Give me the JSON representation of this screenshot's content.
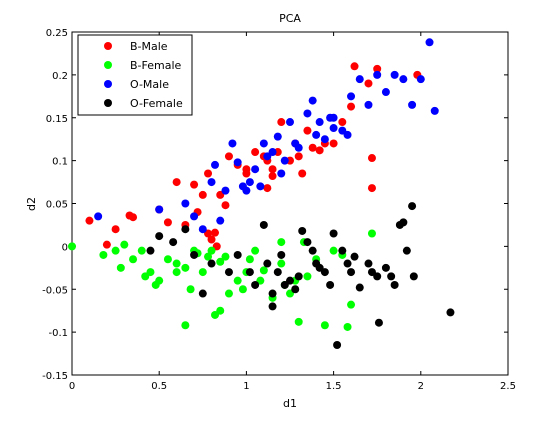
{
  "chart_data": {
    "type": "scatter",
    "title": "PCA",
    "xlabel": "d1",
    "ylabel": "d2",
    "xlim": [
      0,
      2.5
    ],
    "ylim": [
      -0.15,
      0.25
    ],
    "xticks": [
      0,
      0.5,
      1,
      1.5,
      2,
      2.5
    ],
    "xtick_labels": [
      "0",
      "0.5",
      "1",
      "1.5",
      "2",
      "2.5"
    ],
    "yticks": [
      -0.15,
      -0.1,
      -0.05,
      0,
      0.05,
      0.1,
      0.15,
      0.2,
      0.25
    ],
    "ytick_labels": [
      "-0.15",
      "-0.1",
      "-0.05",
      "0",
      "0.05",
      "0.1",
      "0.15",
      "0.2",
      "0.25"
    ],
    "grid": false,
    "legend_position": "top-left",
    "series": [
      {
        "name": "B-Male",
        "color": "#ff0000",
        "points": [
          [
            0.1,
            0.03
          ],
          [
            0.2,
            0.002
          ],
          [
            0.25,
            0.02
          ],
          [
            0.33,
            0.036
          ],
          [
            0.35,
            0.034
          ],
          [
            0.5,
            0.043
          ],
          [
            0.55,
            0.028
          ],
          [
            0.6,
            0.075
          ],
          [
            0.65,
            0.025
          ],
          [
            0.7,
            0.072
          ],
          [
            0.72,
            0.04
          ],
          [
            0.75,
            0.06
          ],
          [
            0.78,
            0.085
          ],
          [
            0.78,
            0.015
          ],
          [
            0.8,
            0.008
          ],
          [
            0.82,
            0.016
          ],
          [
            0.85,
            0.06
          ],
          [
            0.88,
            0.048
          ],
          [
            0.9,
            0.105
          ],
          [
            0.95,
            0.095
          ],
          [
            1.0,
            0.09
          ],
          [
            1.0,
            0.085
          ],
          [
            1.05,
            0.11
          ],
          [
            1.1,
            0.105
          ],
          [
            1.12,
            0.1
          ],
          [
            1.15,
            0.09
          ],
          [
            1.15,
            0.082
          ],
          [
            1.12,
            0.068
          ],
          [
            1.18,
            0.11
          ],
          [
            1.2,
            0.145
          ],
          [
            1.25,
            0.1
          ],
          [
            1.28,
            0.12
          ],
          [
            1.3,
            0.105
          ],
          [
            1.32,
            0.085
          ],
          [
            1.35,
            0.135
          ],
          [
            1.38,
            0.115
          ],
          [
            1.42,
            0.112
          ],
          [
            1.45,
            0.12
          ],
          [
            1.5,
            0.12
          ],
          [
            1.55,
            0.145
          ],
          [
            1.6,
            0.163
          ],
          [
            1.62,
            0.21
          ],
          [
            1.7,
            0.19
          ],
          [
            1.72,
            0.103
          ],
          [
            1.72,
            0.068
          ],
          [
            1.75,
            0.207
          ],
          [
            1.98,
            0.2
          ],
          [
            0.83,
            0.0
          ]
        ]
      },
      {
        "name": "B-Female",
        "color": "#00ff00",
        "points": [
          [
            0.0,
            0.0
          ],
          [
            0.18,
            -0.01
          ],
          [
            0.25,
            -0.005
          ],
          [
            0.28,
            -0.025
          ],
          [
            0.3,
            0.002
          ],
          [
            0.35,
            -0.015
          ],
          [
            0.4,
            -0.005
          ],
          [
            0.42,
            -0.035
          ],
          [
            0.45,
            -0.03
          ],
          [
            0.48,
            -0.045
          ],
          [
            0.5,
            -0.04
          ],
          [
            0.55,
            -0.015
          ],
          [
            0.6,
            -0.02
          ],
          [
            0.6,
            -0.03
          ],
          [
            0.65,
            -0.025
          ],
          [
            0.65,
            -0.092
          ],
          [
            0.68,
            -0.05
          ],
          [
            0.7,
            -0.005
          ],
          [
            0.72,
            -0.008
          ],
          [
            0.75,
            -0.03
          ],
          [
            0.78,
            -0.012
          ],
          [
            0.8,
            -0.005
          ],
          [
            0.82,
            -0.08
          ],
          [
            0.85,
            -0.075
          ],
          [
            0.85,
            -0.018
          ],
          [
            0.88,
            -0.012
          ],
          [
            0.9,
            -0.055
          ],
          [
            0.95,
            -0.04
          ],
          [
            0.98,
            -0.05
          ],
          [
            1.0,
            -0.03
          ],
          [
            1.02,
            -0.015
          ],
          [
            1.05,
            -0.005
          ],
          [
            1.08,
            -0.04
          ],
          [
            1.1,
            -0.028
          ],
          [
            1.15,
            -0.06
          ],
          [
            1.2,
            -0.02
          ],
          [
            1.22,
            -0.045
          ],
          [
            1.25,
            -0.055
          ],
          [
            1.28,
            -0.04
          ],
          [
            1.3,
            -0.088
          ],
          [
            1.33,
            0.005
          ],
          [
            1.35,
            -0.035
          ],
          [
            1.4,
            -0.015
          ],
          [
            1.45,
            -0.092
          ],
          [
            1.5,
            -0.005
          ],
          [
            1.55,
            -0.01
          ],
          [
            1.58,
            -0.094
          ],
          [
            1.6,
            -0.068
          ],
          [
            1.72,
            0.015
          ],
          [
            1.2,
            0.005
          ]
        ]
      },
      {
        "name": "O-Male",
        "color": "#0000ff",
        "points": [
          [
            0.15,
            0.035
          ],
          [
            0.5,
            0.043
          ],
          [
            0.65,
            0.05
          ],
          [
            0.7,
            0.035
          ],
          [
            0.75,
            0.02
          ],
          [
            0.8,
            0.075
          ],
          [
            0.82,
            0.095
          ],
          [
            0.85,
            0.03
          ],
          [
            0.88,
            0.065
          ],
          [
            0.92,
            0.12
          ],
          [
            0.95,
            0.098
          ],
          [
            0.98,
            0.07
          ],
          [
            1.0,
            0.065
          ],
          [
            1.02,
            0.075
          ],
          [
            1.05,
            0.09
          ],
          [
            1.08,
            0.07
          ],
          [
            1.1,
            0.12
          ],
          [
            1.12,
            0.105
          ],
          [
            1.15,
            0.11
          ],
          [
            1.18,
            0.128
          ],
          [
            1.2,
            0.085
          ],
          [
            1.22,
            0.1
          ],
          [
            1.25,
            0.145
          ],
          [
            1.28,
            0.12
          ],
          [
            1.3,
            0.115
          ],
          [
            1.35,
            0.155
          ],
          [
            1.38,
            0.17
          ],
          [
            1.4,
            0.13
          ],
          [
            1.42,
            0.145
          ],
          [
            1.45,
            0.125
          ],
          [
            1.48,
            0.15
          ],
          [
            1.5,
            0.15
          ],
          [
            1.5,
            0.138
          ],
          [
            1.55,
            0.135
          ],
          [
            1.58,
            0.13
          ],
          [
            1.6,
            0.175
          ],
          [
            1.65,
            0.195
          ],
          [
            1.7,
            0.165
          ],
          [
            1.75,
            0.2
          ],
          [
            1.8,
            0.18
          ],
          [
            1.85,
            0.2
          ],
          [
            1.9,
            0.195
          ],
          [
            1.95,
            0.165
          ],
          [
            2.0,
            0.195
          ],
          [
            2.05,
            0.238
          ],
          [
            2.08,
            0.158
          ]
        ]
      },
      {
        "name": "O-Female",
        "color": "#000000",
        "points": [
          [
            0.45,
            -0.005
          ],
          [
            0.5,
            0.012
          ],
          [
            0.58,
            0.005
          ],
          [
            0.65,
            0.02
          ],
          [
            0.7,
            -0.01
          ],
          [
            0.75,
            -0.055
          ],
          [
            0.8,
            -0.02
          ],
          [
            0.9,
            -0.03
          ],
          [
            0.95,
            -0.01
          ],
          [
            1.02,
            -0.03
          ],
          [
            1.05,
            -0.045
          ],
          [
            1.1,
            0.025
          ],
          [
            1.12,
            -0.02
          ],
          [
            1.15,
            -0.055
          ],
          [
            1.15,
            -0.07
          ],
          [
            1.18,
            -0.03
          ],
          [
            1.2,
            -0.01
          ],
          [
            1.22,
            -0.045
          ],
          [
            1.25,
            -0.04
          ],
          [
            1.28,
            -0.05
          ],
          [
            1.3,
            -0.035
          ],
          [
            1.32,
            0.018
          ],
          [
            1.35,
            0.005
          ],
          [
            1.38,
            -0.005
          ],
          [
            1.4,
            -0.02
          ],
          [
            1.42,
            -0.025
          ],
          [
            1.45,
            -0.03
          ],
          [
            1.48,
            -0.045
          ],
          [
            1.5,
            0.015
          ],
          [
            1.52,
            -0.115
          ],
          [
            1.55,
            -0.005
          ],
          [
            1.58,
            -0.02
          ],
          [
            1.6,
            -0.03
          ],
          [
            1.62,
            -0.012
          ],
          [
            1.65,
            -0.048
          ],
          [
            1.7,
            -0.02
          ],
          [
            1.72,
            -0.03
          ],
          [
            1.75,
            -0.035
          ],
          [
            1.76,
            -0.089
          ],
          [
            1.8,
            -0.025
          ],
          [
            1.83,
            -0.035
          ],
          [
            1.85,
            -0.045
          ],
          [
            1.88,
            0.025
          ],
          [
            1.9,
            0.028
          ],
          [
            1.92,
            -0.005
          ],
          [
            1.95,
            0.047
          ],
          [
            1.96,
            -0.035
          ],
          [
            2.17,
            -0.077
          ]
        ]
      }
    ]
  }
}
